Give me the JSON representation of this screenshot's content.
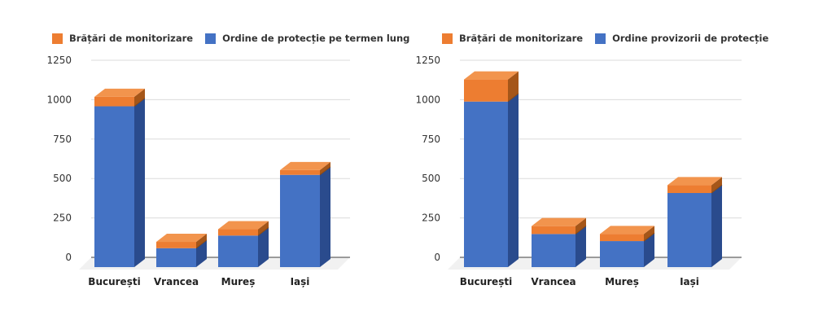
{
  "style": {
    "background": "#FFFFFF",
    "grid_color": "#DBDBDB",
    "axis_color": "#3F3F3F",
    "floor_color": "#F1F1F1",
    "tick_text_color": "#333333",
    "category_text_color": "#222222",
    "legend_text_color": "#333333",
    "segment_edge_color": "#8A4A15"
  },
  "chart_data": [
    {
      "type": "bar",
      "variant": "3d-stacked-column",
      "title": "",
      "xlabel": "",
      "ylabel": "",
      "categories": [
        "București",
        "Vrancea",
        "Mureș",
        "Iași"
      ],
      "series": [
        {
          "name": "Ordine de protecție pe termen lung",
          "color": "#4472C4",
          "color_side": "#2A4B8D",
          "color_top": "#7396D6",
          "values": [
            1020,
            120,
            200,
            585
          ]
        },
        {
          "name": "Brățări de monitorizare",
          "color": "#ED7D31",
          "color_side": "#A55619",
          "color_top": "#F2944D",
          "values": [
            60,
            40,
            40,
            30
          ]
        }
      ],
      "stacking": "first-series-bottom",
      "legend_position": "top",
      "legend_order_series_indexes": [
        1,
        0
      ],
      "ylim": [
        0,
        1250
      ],
      "yticks": [
        0,
        250,
        500,
        750,
        1000,
        1250
      ],
      "grid": true
    },
    {
      "type": "bar",
      "variant": "3d-stacked-column",
      "title": "",
      "xlabel": "",
      "ylabel": "",
      "categories": [
        "București",
        "Vrancea",
        "Mureș",
        "Iași"
      ],
      "series": [
        {
          "name": "Ordine provizorii de protecție",
          "color": "#4472C4",
          "color_side": "#2A4B8D",
          "color_top": "#7396D6",
          "values": [
            1050,
            210,
            165,
            470
          ]
        },
        {
          "name": "Brățări de monitorizare",
          "color": "#ED7D31",
          "color_side": "#A55619",
          "color_top": "#F2944D",
          "values": [
            140,
            50,
            45,
            50
          ]
        }
      ],
      "stacking": "first-series-bottom",
      "legend_position": "top",
      "legend_order_series_indexes": [
        1,
        0
      ],
      "ylim": [
        0,
        1250
      ],
      "yticks": [
        0,
        250,
        500,
        750,
        1000,
        1250
      ],
      "grid": true
    }
  ]
}
